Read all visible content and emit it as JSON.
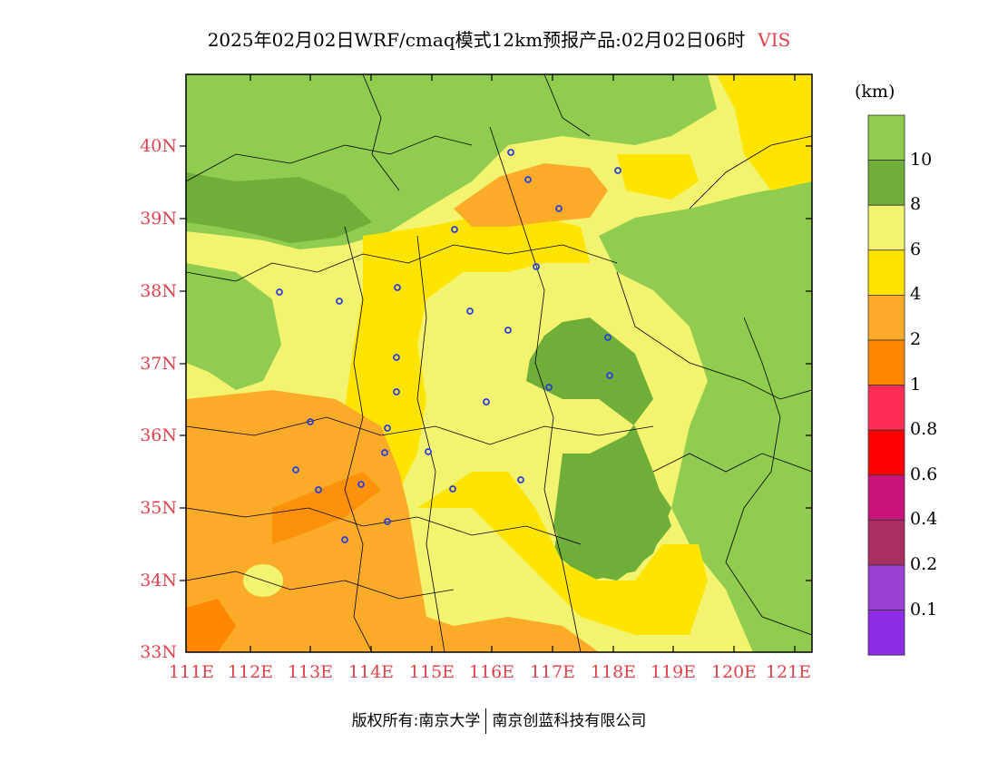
{
  "title": {
    "main": "2025年02月02日WRF/cmaq模式12km预报产品:02月02日06时",
    "variable": "VIS"
  },
  "axes": {
    "lat_labels": [
      "40N",
      "39N",
      "38N",
      "37N",
      "36N",
      "35N",
      "34N",
      "33N"
    ],
    "lon_labels": [
      "111E",
      "112E",
      "113E",
      "114E",
      "115E",
      "116E",
      "117E",
      "118E",
      "119E",
      "120E",
      "121E"
    ]
  },
  "colorbar": {
    "unit": "(km)",
    "bins": [
      {
        "label": "10",
        "color": "#8fcc4f"
      },
      {
        "label": "8",
        "color": "#6fae38"
      },
      {
        "label": "6",
        "color": "#f2f36e"
      },
      {
        "label": "4",
        "color": "#ffe400"
      },
      {
        "label": "2",
        "color": "#fcab28"
      },
      {
        "label": "1",
        "color": "#ff8800"
      },
      {
        "label": "0.8",
        "color": "#ff2e56"
      },
      {
        "label": "0.6",
        "color": "#ff0000"
      },
      {
        "label": "0.4",
        "color": "#c8137c"
      },
      {
        "label": "0.2",
        "color": "#a83060"
      },
      {
        "label": "0.1",
        "color": "#9a3fd0"
      },
      {
        "label": "",
        "color": "#8e2be6"
      }
    ]
  },
  "footer": {
    "copyright": "版权所有:南京大学",
    "company": "南京创蓝科技有限公司"
  }
}
